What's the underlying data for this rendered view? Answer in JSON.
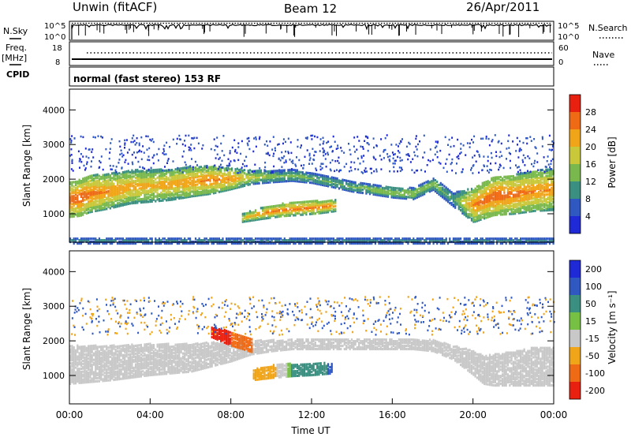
{
  "header": {
    "station": "Unwin (fitACF)",
    "beam": "Beam 12",
    "date": "26/Apr/2011"
  },
  "left_labels": {
    "nsky": "N.Sky",
    "freq": "Freq.",
    "freq_unit": "[MHz]",
    "cpid": "CPID"
  },
  "right_labels": {
    "nsearch": "N.Search",
    "nave": "Nave"
  },
  "mode_text": "normal (fast stereo) 153 RF",
  "chart_data": [
    {
      "type": "line",
      "panel": "noise",
      "left_ticks": [
        "10^5",
        "10^0"
      ],
      "right_ticks": [
        "10^5",
        "10^0"
      ],
      "series": [
        {
          "name": "N.Sky",
          "style": "solid",
          "level": 0.9
        },
        {
          "name": "N.Search",
          "style": "dotted",
          "level": 0.95
        }
      ],
      "xlim": [
        "00:00",
        "24:00"
      ]
    },
    {
      "type": "line",
      "panel": "frequency",
      "left_ticks": [
        "18",
        "8"
      ],
      "right_ticks": [
        "60",
        "0"
      ],
      "series": [
        {
          "name": "Freq.",
          "units": "MHz",
          "approx_value": 10
        },
        {
          "name": "Nave",
          "approx_value": 46
        }
      ]
    },
    {
      "type": "heatmap",
      "panel": "power",
      "ylabel": "Slant Range [km]",
      "ylim": [
        180,
        4600
      ],
      "yticks": [
        1000,
        2000,
        3000,
        4000
      ],
      "xlim_hours": [
        0,
        24
      ],
      "colorbar": {
        "label": "Power [dB]",
        "ticks": [
          4,
          8,
          12,
          16,
          20,
          24,
          28
        ],
        "range": [
          0,
          32
        ],
        "colors": [
          "#1f2ad6",
          "#2f58c0",
          "#3a8f80",
          "#79b84d",
          "#c8c83a",
          "#f0a418",
          "#ee6a15",
          "#e8200f"
        ]
      },
      "regions": [
        {
          "name": "main echo band",
          "t": [
            0,
            0.5,
            1,
            2,
            3,
            4,
            5,
            6,
            7,
            8,
            9,
            10,
            11,
            12,
            13,
            14,
            15,
            16,
            17,
            18,
            19,
            20,
            21,
            22,
            23,
            24
          ],
          "center_km": [
            1450,
            1500,
            1620,
            1700,
            1820,
            1850,
            1880,
            1970,
            2020,
            2050,
            2100,
            2120,
            2150,
            2080,
            1950,
            1820,
            1740,
            1660,
            1620,
            1900,
            1450,
            1300,
            1550,
            1600,
            1700,
            1750
          ],
          "halfwidth_km": [
            500,
            520,
            530,
            500,
            480,
            460,
            440,
            430,
            400,
            300,
            200,
            170,
            160,
            150,
            140,
            140,
            140,
            150,
            160,
            170,
            200,
            500,
            550,
            560,
            580,
            600
          ],
          "peak_db": [
            27,
            28,
            26,
            24,
            23,
            22,
            23,
            24,
            25,
            24,
            18,
            15,
            14,
            13,
            13,
            14,
            15,
            16,
            16,
            15,
            12,
            25,
            28,
            26,
            25,
            24
          ]
        },
        {
          "name": "lower echo patch",
          "t": [
            8.5,
            9.5,
            10.5,
            11.5,
            12.3,
            13.2
          ],
          "center_km": [
            920,
            1050,
            1150,
            1200,
            1230,
            1280
          ],
          "halfwidth_km": [
            120,
            160,
            180,
            190,
            180,
            160
          ],
          "peak_db": [
            20,
            25,
            27,
            26,
            27,
            24
          ]
        },
        {
          "name": "near-range clutter",
          "t": [
            0,
            24
          ],
          "center_km": [
            260,
            260
          ],
          "halfwidth_km": [
            80,
            80
          ],
          "peak_db": [
            10,
            10
          ]
        }
      ]
    },
    {
      "type": "heatmap",
      "panel": "velocity",
      "ylabel": "Slant Range [km]",
      "ylim": [
        180,
        4600
      ],
      "yticks": [
        1000,
        2000,
        3000,
        4000
      ],
      "xlim_hours": [
        0,
        24
      ],
      "xticks": [
        "00:00",
        "04:00",
        "08:00",
        "12:00",
        "16:00",
        "20:00",
        "00:00"
      ],
      "xlabel": "Time UT",
      "colorbar": {
        "label": "Velocity [m s⁻¹]",
        "ticks": [
          "200",
          "100",
          "50",
          "15",
          "-15",
          "-50",
          "-100",
          "-200"
        ],
        "colors": [
          "#1f2ad6",
          "#2f58c0",
          "#3a8f80",
          "#76c043",
          "#c8c8c8",
          "#f0a418",
          "#ee6a15",
          "#e8200f"
        ]
      },
      "regions": [
        {
          "name": "ground scatter band",
          "t": [
            0,
            2,
            4,
            6,
            7,
            8,
            9,
            10,
            11,
            12,
            13,
            14,
            15,
            16,
            17,
            18,
            19,
            20,
            20.5,
            21,
            22,
            23,
            24
          ],
          "center_km": [
            1350,
            1400,
            1500,
            1550,
            1650,
            1700,
            1850,
            1900,
            1950,
            1950,
            1950,
            1950,
            1950,
            1950,
            1950,
            1900,
            1700,
            1400,
            1200,
            1200,
            1250,
            1300,
            1300
          ],
          "halfwidth_km": [
            550,
            500,
            450,
            400,
            350,
            250,
            200,
            160,
            150,
            150,
            150,
            150,
            150,
            150,
            150,
            160,
            200,
            350,
            400,
            450,
            500,
            550,
            550
          ],
          "velocity": [
            0,
            0,
            0,
            0,
            0,
            0,
            0,
            0,
            0,
            0,
            0,
            0,
            0,
            0,
            0,
            0,
            0,
            0,
            0,
            0,
            0,
            0,
            0
          ]
        },
        {
          "name": "negative velocity patch",
          "t": [
            9,
            10,
            11,
            12,
            13
          ],
          "center_km": [
            1050,
            1150,
            1200,
            1220,
            1250
          ],
          "halfwidth_km": [
            150,
            180,
            180,
            170,
            150
          ],
          "velocity": [
            -60,
            -50,
            40,
            60,
            80
          ]
        },
        {
          "name": "red streak",
          "t": [
            7,
            8,
            9
          ],
          "center_km": [
            2300,
            2100,
            1900
          ],
          "halfwidth_km": [
            150,
            200,
            180
          ],
          "velocity": [
            -200,
            -150,
            -120
          ]
        }
      ]
    }
  ]
}
